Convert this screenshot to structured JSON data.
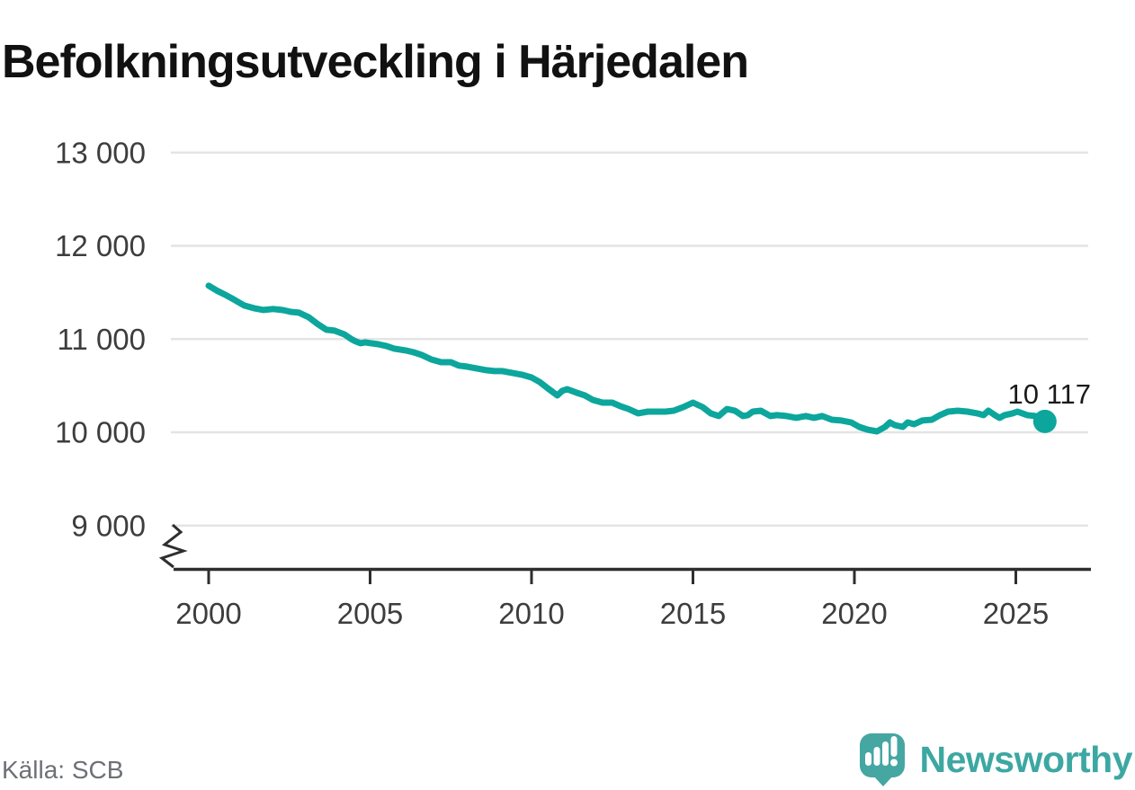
{
  "title": "Befolkningsutveckling i Härjedalen",
  "source": "Källa: SCB",
  "logo": {
    "text": "Newsworthy"
  },
  "chart_data": {
    "type": "line",
    "title": "Befolkningsutveckling i Härjedalen",
    "xlabel": "",
    "ylabel": "",
    "grid": "horizontal",
    "y_axis_break": true,
    "xlim": [
      1998.8,
      2027.3
    ],
    "ylim": [
      9000,
      13000
    ],
    "xticks": [
      {
        "value": 2000,
        "label": "2000"
      },
      {
        "value": 2005,
        "label": "2005"
      },
      {
        "value": 2010,
        "label": "2010"
      },
      {
        "value": 2015,
        "label": "2015"
      },
      {
        "value": 2020,
        "label": "2020"
      },
      {
        "value": 2025,
        "label": "2025"
      }
    ],
    "yticks": [
      {
        "value": 13000,
        "label": "13 000"
      },
      {
        "value": 12000,
        "label": "12 000"
      },
      {
        "value": 11000,
        "label": "11 000"
      },
      {
        "value": 10000,
        "label": "10 000"
      },
      {
        "value": 9000,
        "label": "9 000"
      }
    ],
    "latest": {
      "label": "10 117",
      "value": 10117
    },
    "series": [
      {
        "color": "#0ca69c",
        "points": [
          [
            2000.0,
            11572
          ],
          [
            2000.25,
            11520
          ],
          [
            2000.5,
            11478
          ],
          [
            2000.75,
            11430
          ],
          [
            2001.1,
            11360
          ],
          [
            2001.4,
            11331
          ],
          [
            2001.7,
            11312
          ],
          [
            2002.0,
            11322
          ],
          [
            2002.3,
            11311
          ],
          [
            2002.55,
            11292
          ],
          [
            2002.8,
            11283
          ],
          [
            2003.1,
            11234
          ],
          [
            2003.35,
            11167
          ],
          [
            2003.65,
            11100
          ],
          [
            2003.9,
            11090
          ],
          [
            2004.2,
            11051
          ],
          [
            2004.4,
            11003
          ],
          [
            2004.55,
            10975
          ],
          [
            2004.7,
            10955
          ],
          [
            2004.85,
            10965
          ],
          [
            2005.0,
            10956
          ],
          [
            2005.25,
            10945
          ],
          [
            2005.5,
            10926
          ],
          [
            2005.75,
            10897
          ],
          [
            2006.1,
            10878
          ],
          [
            2006.35,
            10858
          ],
          [
            2006.6,
            10830
          ],
          [
            2006.9,
            10781
          ],
          [
            2007.2,
            10752
          ],
          [
            2007.5,
            10752
          ],
          [
            2007.75,
            10715
          ],
          [
            2008.0,
            10705
          ],
          [
            2008.3,
            10685
          ],
          [
            2008.6,
            10666
          ],
          [
            2008.85,
            10656
          ],
          [
            2009.1,
            10656
          ],
          [
            2009.4,
            10637
          ],
          [
            2009.7,
            10618
          ],
          [
            2010.0,
            10588
          ],
          [
            2010.25,
            10540
          ],
          [
            2010.5,
            10472
          ],
          [
            2010.8,
            10396
          ],
          [
            2010.95,
            10444
          ],
          [
            2011.1,
            10463
          ],
          [
            2011.4,
            10424
          ],
          [
            2011.65,
            10396
          ],
          [
            2011.9,
            10347
          ],
          [
            2012.2,
            10318
          ],
          [
            2012.5,
            10318
          ],
          [
            2012.75,
            10280
          ],
          [
            2013.0,
            10251
          ],
          [
            2013.3,
            10203
          ],
          [
            2013.6,
            10222
          ],
          [
            2013.9,
            10222
          ],
          [
            2014.15,
            10222
          ],
          [
            2014.4,
            10231
          ],
          [
            2014.7,
            10270
          ],
          [
            2015.0,
            10318
          ],
          [
            2015.3,
            10270
          ],
          [
            2015.55,
            10203
          ],
          [
            2015.8,
            10174
          ],
          [
            2016.05,
            10250
          ],
          [
            2016.3,
            10231
          ],
          [
            2016.55,
            10174
          ],
          [
            2016.7,
            10184
          ],
          [
            2016.85,
            10222
          ],
          [
            2017.1,
            10231
          ],
          [
            2017.4,
            10174
          ],
          [
            2017.6,
            10184
          ],
          [
            2017.9,
            10174
          ],
          [
            2018.2,
            10155
          ],
          [
            2018.5,
            10174
          ],
          [
            2018.75,
            10155
          ],
          [
            2019.0,
            10174
          ],
          [
            2019.3,
            10135
          ],
          [
            2019.6,
            10126
          ],
          [
            2019.9,
            10106
          ],
          [
            2020.15,
            10058
          ],
          [
            2020.4,
            10029
          ],
          [
            2020.7,
            10010
          ],
          [
            2020.95,
            10058
          ],
          [
            2021.1,
            10106
          ],
          [
            2021.25,
            10077
          ],
          [
            2021.5,
            10058
          ],
          [
            2021.65,
            10106
          ],
          [
            2021.85,
            10087
          ],
          [
            2022.1,
            10126
          ],
          [
            2022.4,
            10135
          ],
          [
            2022.65,
            10184
          ],
          [
            2022.9,
            10222
          ],
          [
            2023.2,
            10231
          ],
          [
            2023.5,
            10222
          ],
          [
            2023.8,
            10203
          ],
          [
            2024.0,
            10184
          ],
          [
            2024.15,
            10231
          ],
          [
            2024.35,
            10184
          ],
          [
            2024.5,
            10155
          ],
          [
            2024.65,
            10184
          ],
          [
            2024.9,
            10203
          ],
          [
            2025.05,
            10222
          ],
          [
            2025.2,
            10203
          ],
          [
            2025.35,
            10184
          ],
          [
            2025.6,
            10174
          ],
          [
            2025.9,
            10117
          ]
        ]
      }
    ]
  }
}
